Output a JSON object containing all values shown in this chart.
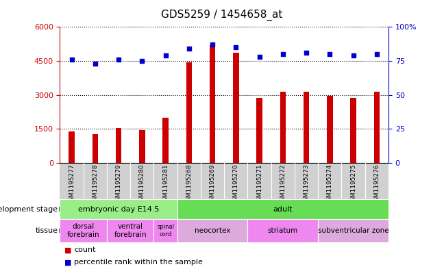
{
  "title": "GDS5259 / 1454658_at",
  "samples": [
    "GSM1195277",
    "GSM1195278",
    "GSM1195279",
    "GSM1195280",
    "GSM1195281",
    "GSM1195268",
    "GSM1195269",
    "GSM1195270",
    "GSM1195271",
    "GSM1195272",
    "GSM1195273",
    "GSM1195274",
    "GSM1195275",
    "GSM1195276"
  ],
  "counts": [
    1380,
    1250,
    1520,
    1430,
    2000,
    4450,
    5200,
    4850,
    2850,
    3150,
    3130,
    2950,
    2870,
    3130
  ],
  "percentiles": [
    76,
    73,
    76,
    75,
    79,
    84,
    87,
    85,
    78,
    80,
    81,
    80,
    79,
    80
  ],
  "bar_color": "#cc0000",
  "dot_color": "#0000cc",
  "ylim_left": [
    0,
    6000
  ],
  "ylim_right": [
    0,
    100
  ],
  "yticks_left": [
    0,
    1500,
    3000,
    4500,
    6000
  ],
  "yticks_right": [
    0,
    25,
    50,
    75,
    100
  ],
  "development_stage_groups": [
    {
      "label": "embryonic day E14.5",
      "start": 0,
      "end": 4,
      "color": "#99EE88"
    },
    {
      "label": "adult",
      "start": 5,
      "end": 13,
      "color": "#66DD55"
    }
  ],
  "tissue_groups": [
    {
      "label": "dorsal\nforebrain",
      "start": 0,
      "end": 1,
      "color": "#EE88EE"
    },
    {
      "label": "ventral\nforebrain",
      "start": 2,
      "end": 3,
      "color": "#EE88EE"
    },
    {
      "label": "spinal\ncord",
      "start": 4,
      "end": 4,
      "color": "#EE88EE"
    },
    {
      "label": "neocortex",
      "start": 5,
      "end": 7,
      "color": "#DDAADD"
    },
    {
      "label": "striatum",
      "start": 8,
      "end": 10,
      "color": "#EE88EE"
    },
    {
      "label": "subventricular zone",
      "start": 11,
      "end": 13,
      "color": "#DDAADD"
    }
  ],
  "dev_stage_row_label": "development stage",
  "tissue_row_label": "tissue",
  "legend_count_label": "count",
  "legend_pct_label": "percentile rank within the sample",
  "chart_bg": "#ffffff",
  "xticklabel_bg": "#d0d0d0"
}
